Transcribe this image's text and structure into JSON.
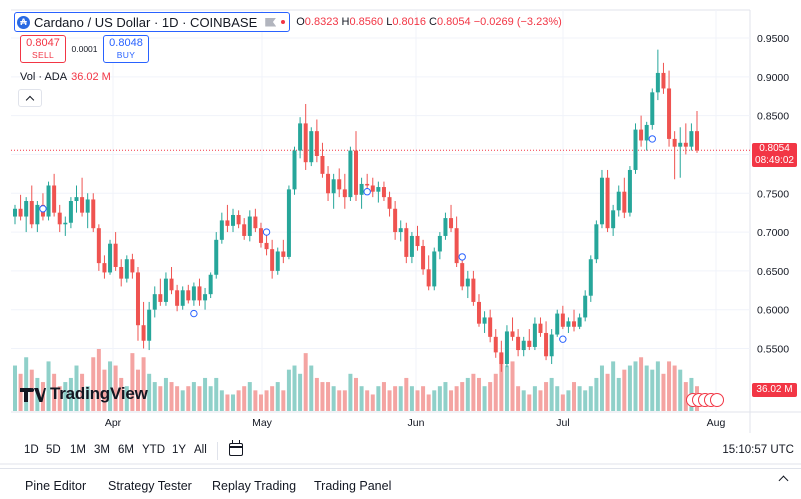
{
  "header": {
    "symbol_title": "Cardano / US Dollar · 1D · COINBASE",
    "icon_letter": "₳",
    "ohlc": {
      "o_label": "O",
      "o": "0.8323",
      "h_label": "H",
      "h": "0.8560",
      "l_label": "L",
      "l": "0.8016",
      "c_label": "C",
      "c": "0.8054",
      "change": "−0.0269 (−3.23%)"
    }
  },
  "trade": {
    "sell_price": "0.8047",
    "sell_label": "SELL",
    "spread": "0.0001",
    "buy_price": "0.8048",
    "buy_label": "BUY"
  },
  "volume_legend": {
    "label": "Vol · ADA",
    "value": "36.02 M"
  },
  "price_scale": {
    "current_price": "0.8054",
    "countdown": "08:49:02",
    "volume_tag": "36.02 M"
  },
  "brand": {
    "name": "TradingView"
  },
  "toolbar": {
    "timeframes": [
      "1D",
      "5D",
      "1M",
      "3M",
      "6M",
      "YTD",
      "1Y",
      "All"
    ],
    "time": "15:10:57 UTC"
  },
  "panels": [
    "Pine Editor",
    "Strategy Tester",
    "Replay Trading",
    "Trading Panel"
  ],
  "colors": {
    "up": "#26a69a",
    "down": "#ef5350",
    "up_vol": "#8fd0c9",
    "down_vol": "#f4a4a2",
    "accent": "#2962ff",
    "price_line": "#f23645"
  },
  "chart_data": {
    "type": "candlestick",
    "y_ticks": [
      "0.9500",
      "0.9000",
      "0.8500",
      "0.8000",
      "0.7500",
      "0.7000",
      "0.6500",
      "0.6000",
      "0.5500"
    ],
    "x_ticks": [
      "Apr",
      "May",
      "Jun",
      "Jul",
      "Aug"
    ],
    "ylim": [
      0.52,
      0.96
    ],
    "grid": true,
    "candles": [
      [
        0.72,
        0.735,
        0.71,
        0.73
      ],
      [
        0.73,
        0.748,
        0.715,
        0.72
      ],
      [
        0.72,
        0.745,
        0.7,
        0.74
      ],
      [
        0.74,
        0.76,
        0.705,
        0.71
      ],
      [
        0.71,
        0.74,
        0.7,
        0.735
      ],
      [
        0.735,
        0.75,
        0.715,
        0.72
      ],
      [
        0.72,
        0.765,
        0.715,
        0.76
      ],
      [
        0.76,
        0.775,
        0.72,
        0.725
      ],
      [
        0.725,
        0.735,
        0.7,
        0.71
      ],
      [
        0.71,
        0.72,
        0.695,
        0.712
      ],
      [
        0.712,
        0.745,
        0.705,
        0.74
      ],
      [
        0.74,
        0.76,
        0.725,
        0.745
      ],
      [
        0.745,
        0.77,
        0.72,
        0.725
      ],
      [
        0.725,
        0.75,
        0.705,
        0.742
      ],
      [
        0.742,
        0.75,
        0.7,
        0.705
      ],
      [
        0.705,
        0.71,
        0.65,
        0.66
      ],
      [
        0.66,
        0.67,
        0.64,
        0.648
      ],
      [
        0.648,
        0.69,
        0.645,
        0.685
      ],
      [
        0.685,
        0.7,
        0.65,
        0.655
      ],
      [
        0.655,
        0.665,
        0.63,
        0.64
      ],
      [
        0.64,
        0.67,
        0.635,
        0.665
      ],
      [
        0.665,
        0.672,
        0.64,
        0.648
      ],
      [
        0.648,
        0.655,
        0.56,
        0.58
      ],
      [
        0.58,
        0.61,
        0.55,
        0.56
      ],
      [
        0.56,
        0.61,
        0.548,
        0.6
      ],
      [
        0.6,
        0.63,
        0.59,
        0.62
      ],
      [
        0.62,
        0.64,
        0.605,
        0.61
      ],
      [
        0.61,
        0.648,
        0.605,
        0.64
      ],
      [
        0.64,
        0.655,
        0.62,
        0.625
      ],
      [
        0.625,
        0.632,
        0.598,
        0.605
      ],
      [
        0.605,
        0.63,
        0.6,
        0.625
      ],
      [
        0.625,
        0.632,
        0.608,
        0.612
      ],
      [
        0.612,
        0.635,
        0.605,
        0.63
      ],
      [
        0.63,
        0.64,
        0.605,
        0.612
      ],
      [
        0.612,
        0.628,
        0.6,
        0.62
      ],
      [
        0.62,
        0.648,
        0.615,
        0.645
      ],
      [
        0.645,
        0.7,
        0.64,
        0.69
      ],
      [
        0.69,
        0.725,
        0.685,
        0.715
      ],
      [
        0.715,
        0.735,
        0.7,
        0.708
      ],
      [
        0.708,
        0.73,
        0.7,
        0.722
      ],
      [
        0.722,
        0.728,
        0.705,
        0.71
      ],
      [
        0.71,
        0.718,
        0.69,
        0.695
      ],
      [
        0.695,
        0.728,
        0.688,
        0.72
      ],
      [
        0.72,
        0.73,
        0.7,
        0.705
      ],
      [
        0.705,
        0.712,
        0.68,
        0.686
      ],
      [
        0.686,
        0.7,
        0.67,
        0.678
      ],
      [
        0.678,
        0.69,
        0.64,
        0.65
      ],
      [
        0.65,
        0.68,
        0.645,
        0.675
      ],
      [
        0.675,
        0.69,
        0.66,
        0.668
      ],
      [
        0.668,
        0.76,
        0.665,
        0.755
      ],
      [
        0.755,
        0.81,
        0.748,
        0.805
      ],
      [
        0.805,
        0.848,
        0.795,
        0.84
      ],
      [
        0.84,
        0.865,
        0.78,
        0.79
      ],
      [
        0.79,
        0.835,
        0.785,
        0.83
      ],
      [
        0.83,
        0.845,
        0.79,
        0.798
      ],
      [
        0.798,
        0.815,
        0.77,
        0.775
      ],
      [
        0.775,
        0.785,
        0.74,
        0.75
      ],
      [
        0.75,
        0.775,
        0.73,
        0.768
      ],
      [
        0.768,
        0.782,
        0.745,
        0.755
      ],
      [
        0.755,
        0.775,
        0.73,
        0.745
      ],
      [
        0.745,
        0.81,
        0.74,
        0.805
      ],
      [
        0.805,
        0.83,
        0.74,
        0.748
      ],
      [
        0.748,
        0.77,
        0.73,
        0.762
      ],
      [
        0.762,
        0.775,
        0.748,
        0.76
      ],
      [
        0.76,
        0.77,
        0.745,
        0.752
      ],
      [
        0.752,
        0.765,
        0.738,
        0.758
      ],
      [
        0.758,
        0.765,
        0.74,
        0.745
      ],
      [
        0.745,
        0.752,
        0.72,
        0.73
      ],
      [
        0.73,
        0.74,
        0.69,
        0.7
      ],
      [
        0.7,
        0.715,
        0.688,
        0.705
      ],
      [
        0.705,
        0.712,
        0.66,
        0.668
      ],
      [
        0.668,
        0.7,
        0.66,
        0.695
      ],
      [
        0.695,
        0.708,
        0.676,
        0.682
      ],
      [
        0.682,
        0.69,
        0.645,
        0.652
      ],
      [
        0.652,
        0.67,
        0.625,
        0.63
      ],
      [
        0.63,
        0.68,
        0.625,
        0.675
      ],
      [
        0.675,
        0.7,
        0.665,
        0.695
      ],
      [
        0.695,
        0.725,
        0.69,
        0.718
      ],
      [
        0.718,
        0.735,
        0.7,
        0.705
      ],
      [
        0.705,
        0.72,
        0.655,
        0.66
      ],
      [
        0.66,
        0.672,
        0.625,
        0.63
      ],
      [
        0.63,
        0.65,
        0.615,
        0.64
      ],
      [
        0.64,
        0.65,
        0.605,
        0.61
      ],
      [
        0.61,
        0.62,
        0.578,
        0.582
      ],
      [
        0.582,
        0.598,
        0.57,
        0.59
      ],
      [
        0.59,
        0.6,
        0.558,
        0.565
      ],
      [
        0.565,
        0.575,
        0.538,
        0.545
      ],
      [
        0.545,
        0.56,
        0.52,
        0.53
      ],
      [
        0.53,
        0.58,
        0.526,
        0.572
      ],
      [
        0.572,
        0.59,
        0.56,
        0.565
      ],
      [
        0.565,
        0.575,
        0.54,
        0.548
      ],
      [
        0.548,
        0.565,
        0.54,
        0.56
      ],
      [
        0.56,
        0.575,
        0.548,
        0.552
      ],
      [
        0.552,
        0.59,
        0.548,
        0.582
      ],
      [
        0.582,
        0.59,
        0.565,
        0.57
      ],
      [
        0.57,
        0.585,
        0.535,
        0.54
      ],
      [
        0.54,
        0.575,
        0.53,
        0.568
      ],
      [
        0.568,
        0.6,
        0.565,
        0.595
      ],
      [
        0.595,
        0.605,
        0.575,
        0.578
      ],
      [
        0.578,
        0.59,
        0.57,
        0.585
      ],
      [
        0.585,
        0.6,
        0.572,
        0.578
      ],
      [
        0.578,
        0.595,
        0.575,
        0.59
      ],
      [
        0.59,
        0.625,
        0.585,
        0.618
      ],
      [
        0.618,
        0.67,
        0.61,
        0.665
      ],
      [
        0.665,
        0.715,
        0.66,
        0.71
      ],
      [
        0.71,
        0.78,
        0.705,
        0.77
      ],
      [
        0.77,
        0.78,
        0.7,
        0.705
      ],
      [
        0.705,
        0.735,
        0.695,
        0.728
      ],
      [
        0.728,
        0.76,
        0.72,
        0.752
      ],
      [
        0.752,
        0.77,
        0.718,
        0.725
      ],
      [
        0.725,
        0.785,
        0.72,
        0.78
      ],
      [
        0.78,
        0.84,
        0.775,
        0.832
      ],
      [
        0.832,
        0.85,
        0.81,
        0.818
      ],
      [
        0.818,
        0.842,
        0.805,
        0.838
      ],
      [
        0.838,
        0.885,
        0.832,
        0.88
      ],
      [
        0.88,
        0.935,
        0.87,
        0.905
      ],
      [
        0.905,
        0.918,
        0.878,
        0.885
      ],
      [
        0.885,
        0.908,
        0.81,
        0.82
      ],
      [
        0.82,
        0.83,
        0.768,
        0.81
      ],
      [
        0.81,
        0.835,
        0.77,
        0.815
      ],
      [
        0.815,
        0.84,
        0.8,
        0.81
      ],
      [
        0.81,
        0.84,
        0.805,
        0.83
      ],
      [
        0.83,
        0.856,
        0.802,
        0.805
      ]
    ],
    "volumes": [
      55,
      45,
      65,
      50,
      40,
      35,
      60,
      45,
      30,
      35,
      40,
      55,
      45,
      30,
      65,
      75,
      50,
      60,
      55,
      40,
      30,
      70,
      50,
      65,
      45,
      35,
      30,
      40,
      35,
      30,
      25,
      30,
      35,
      30,
      40,
      30,
      40,
      25,
      20,
      20,
      25,
      30,
      35,
      25,
      20,
      25,
      30,
      35,
      25,
      50,
      55,
      45,
      70,
      55,
      40,
      35,
      35,
      30,
      25,
      25,
      45,
      40,
      30,
      25,
      20,
      30,
      35,
      25,
      30,
      30,
      40,
      30,
      25,
      30,
      20,
      25,
      30,
      35,
      25,
      30,
      35,
      40,
      45,
      40,
      30,
      35,
      45,
      70,
      55,
      60,
      30,
      25,
      20,
      30,
      25,
      35,
      40,
      30,
      20,
      25,
      35,
      30,
      25,
      30,
      40,
      55,
      45,
      60,
      40,
      50,
      55,
      60,
      65,
      55,
      50,
      60,
      45,
      60,
      55,
      50,
      35,
      40,
      30
    ]
  }
}
